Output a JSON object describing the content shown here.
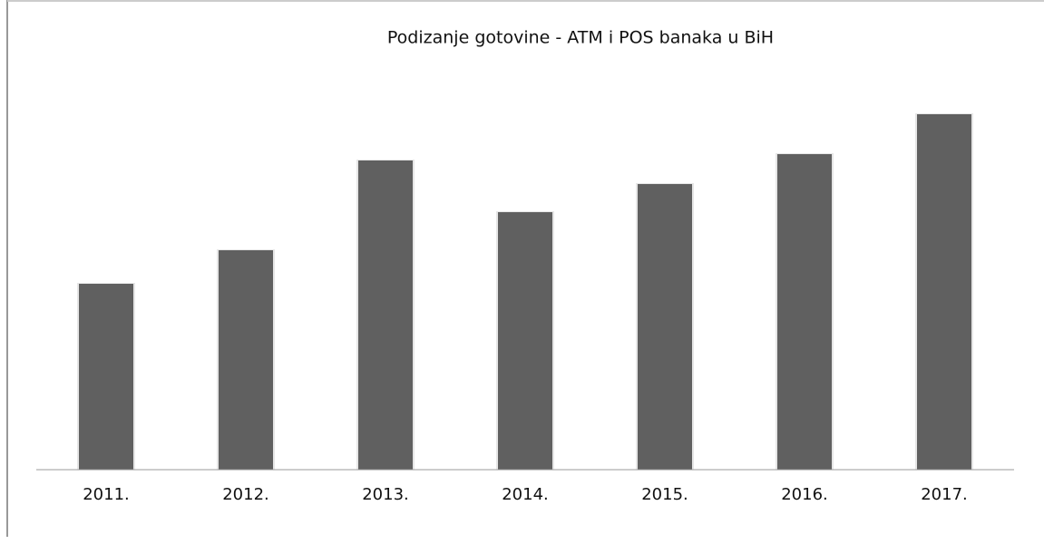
{
  "chart_data": {
    "type": "bar",
    "title": "Podizanje gotovine - ATM i POS banaka u BiH",
    "categories": [
      "2011.",
      "2012.",
      "2013.",
      "2014.",
      "2015.",
      "2016.",
      "2017."
    ],
    "values": [
      205,
      242,
      341,
      284,
      315,
      348,
      392
    ],
    "color": "#606060",
    "ylim": [
      0,
      400
    ],
    "grid": false
  }
}
